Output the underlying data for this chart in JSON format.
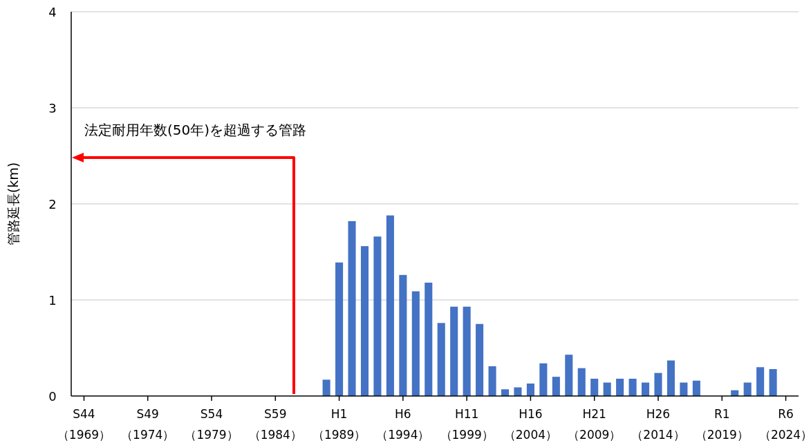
{
  "chart_data": {
    "type": "bar",
    "ylabel": "管路延長(km)",
    "categories": [
      "S44\n（1969）",
      null,
      null,
      null,
      null,
      "S49\n（1974）",
      null,
      null,
      null,
      null,
      "S54\n（1979）",
      null,
      null,
      null,
      null,
      "S59\n（1984）",
      null,
      null,
      null,
      null,
      "H1\n（1989）",
      null,
      null,
      null,
      null,
      "H6\n（1994）",
      null,
      null,
      null,
      null,
      "H11\n（1999）",
      null,
      null,
      null,
      null,
      "H16\n（2004）",
      null,
      null,
      null,
      null,
      "H21\n（2009）",
      null,
      null,
      null,
      null,
      "H26\n（2014）",
      null,
      null,
      null,
      null,
      "R1\n（2019）",
      null,
      null,
      null,
      null,
      "R6\n（2024）"
    ],
    "values": [
      null,
      null,
      null,
      null,
      null,
      null,
      null,
      null,
      null,
      null,
      null,
      null,
      null,
      null,
      null,
      null,
      null,
      null,
      null,
      0.17,
      1.39,
      1.82,
      1.56,
      1.66,
      1.88,
      1.26,
      1.09,
      1.18,
      0.76,
      0.93,
      0.93,
      0.75,
      0.31,
      0.07,
      0.09,
      0.13,
      0.34,
      0.2,
      0.43,
      0.29,
      0.18,
      0.14,
      0.18,
      0.18,
      0.14,
      0.24,
      0.37,
      0.14,
      0.16,
      null,
      null,
      0.06,
      0.14,
      0.3,
      0.28,
      null
    ],
    "color": "#4472c4",
    "ylim": [
      0,
      4
    ],
    "yticks": [
      0,
      1,
      2,
      3,
      4
    ],
    "grid": "y",
    "annotations": [
      "法定耐用年数(50年)を超過する管路"
    ]
  }
}
